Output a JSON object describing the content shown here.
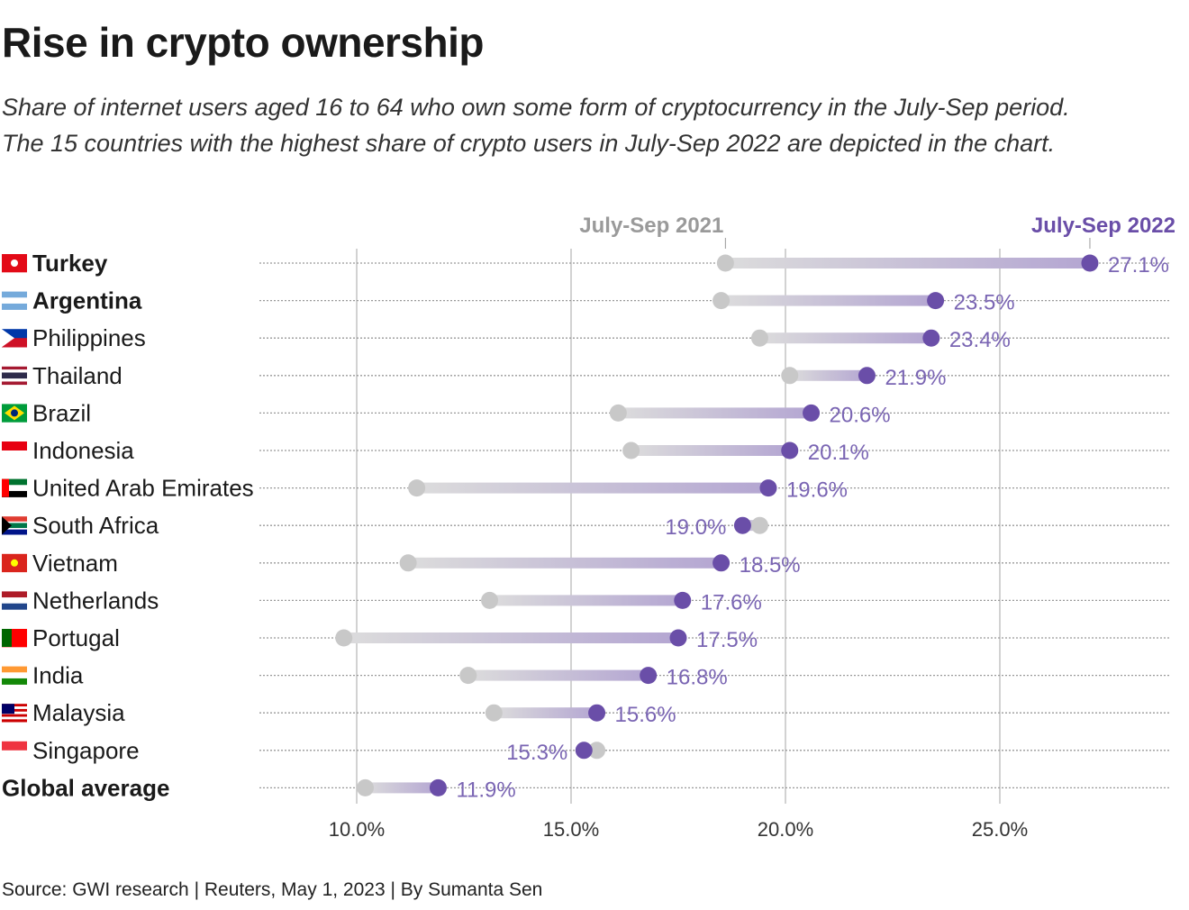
{
  "title": "Rise in crypto ownership",
  "subtitle_lines": [
    "Share of internet users aged 16 to 64 who own some form of cryptocurrency in the July-Sep period.",
    "The 15 countries with the highest share of crypto users in July-Sep 2022 are depicted in the chart."
  ],
  "source": "Source: GWI research | Reuters, May 1, 2023 | By Sumanta Sen",
  "colors": {
    "y2021": "#c8c8c8",
    "y2022": "#6a4ea8",
    "label": "#7a65b3",
    "grid": "#c4c4c4",
    "text": "#1a1a1a"
  },
  "chart_data": {
    "type": "dumbbell",
    "xlim": [
      7.9,
      29.0
    ],
    "x_ticks": [
      10,
      15,
      20,
      25
    ],
    "x_tick_labels": [
      "10.0%",
      "15.0%",
      "20.0%",
      "25.0%"
    ],
    "grid": true,
    "series": [
      {
        "name": "July-Sep 2021",
        "color": "#c8c8c8"
      },
      {
        "name": "July-Sep 2022",
        "color": "#6a4ea8"
      }
    ],
    "rows": [
      {
        "country": "Turkey",
        "flag": "turkey-flag-icon",
        "bold": true,
        "y2021": 18.6,
        "y2022": 27.1,
        "label": "27.1%"
      },
      {
        "country": "Argentina",
        "flag": "argentina-flag-icon",
        "bold": true,
        "y2021": 18.5,
        "y2022": 23.5,
        "label": "23.5%"
      },
      {
        "country": "Philippines",
        "flag": "philippines-flag-icon",
        "bold": false,
        "y2021": 19.4,
        "y2022": 23.4,
        "label": "23.4%"
      },
      {
        "country": "Thailand",
        "flag": "thailand-flag-icon",
        "bold": false,
        "y2021": 20.1,
        "y2022": 21.9,
        "label": "21.9%"
      },
      {
        "country": "Brazil",
        "flag": "brazil-flag-icon",
        "bold": false,
        "y2021": 16.1,
        "y2022": 20.6,
        "label": "20.6%"
      },
      {
        "country": "Indonesia",
        "flag": "indonesia-flag-icon",
        "bold": false,
        "y2021": 16.4,
        "y2022": 20.1,
        "label": "20.1%"
      },
      {
        "country": "United Arab Emirates",
        "flag": "uae-flag-icon",
        "bold": false,
        "y2021": 11.4,
        "y2022": 19.6,
        "label": "19.6%"
      },
      {
        "country": "South Africa",
        "flag": "south-africa-flag-icon",
        "bold": false,
        "y2021": 19.4,
        "y2022": 19.0,
        "label": "19.0%"
      },
      {
        "country": "Vietnam",
        "flag": "vietnam-flag-icon",
        "bold": false,
        "y2021": 11.2,
        "y2022": 18.5,
        "label": "18.5%"
      },
      {
        "country": "Netherlands",
        "flag": "netherlands-flag-icon",
        "bold": false,
        "y2021": 13.1,
        "y2022": 17.6,
        "label": "17.6%"
      },
      {
        "country": "Portugal",
        "flag": "portugal-flag-icon",
        "bold": false,
        "y2021": 9.7,
        "y2022": 17.5,
        "label": "17.5%"
      },
      {
        "country": "India",
        "flag": "india-flag-icon",
        "bold": false,
        "y2021": 12.6,
        "y2022": 16.8,
        "label": "16.8%"
      },
      {
        "country": "Malaysia",
        "flag": "malaysia-flag-icon",
        "bold": false,
        "y2021": 13.2,
        "y2022": 15.6,
        "label": "15.6%"
      },
      {
        "country": "Singapore",
        "flag": "singapore-flag-icon",
        "bold": false,
        "y2021": 15.6,
        "y2022": 15.3,
        "label": "15.3%"
      },
      {
        "country": "Global average",
        "flag": "",
        "bold": true,
        "y2021": 10.2,
        "y2022": 11.9,
        "label": "11.9%"
      }
    ]
  }
}
